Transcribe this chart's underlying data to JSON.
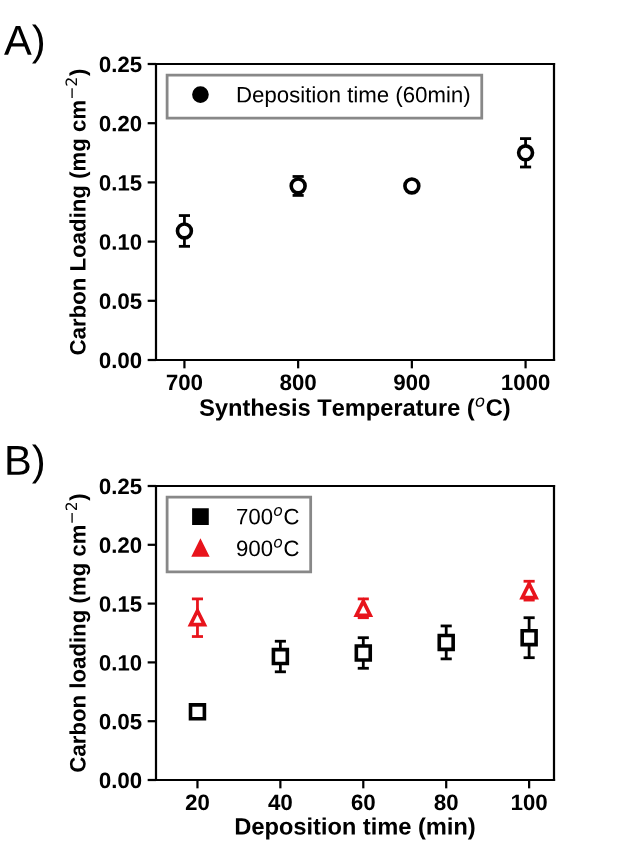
{
  "chart_data": [
    {
      "type": "scatter",
      "annotations": [
        "A)"
      ],
      "xlabel": "Synthesis Temperature ($^{o}$C)",
      "ylabel": "Carbon Loading (mg cm$^{−2}$)",
      "xlim": [
        675,
        1025
      ],
      "xticks": [
        700,
        800,
        900,
        1000
      ],
      "ylim": [
        0,
        0.25
      ],
      "yticks": [
        {
          "value": 0,
          "label": "0.00"
        },
        0.05,
        {
          "value": 0.1,
          "label": "0.10"
        },
        0.15,
        {
          "value": 0.2,
          "label": "0.20"
        },
        0.25
      ],
      "legend": "top left",
      "grid": false,
      "series": [
        {
          "name": "Deposition time (60min)",
          "color": "#000000",
          "marker": "circle",
          "x": [
            700,
            800,
            900,
            1000
          ],
          "values": [
            0.109,
            0.147,
            0.147,
            0.175
          ],
          "errors": [
            0.013,
            0.008,
            0.004,
            0.012
          ]
        }
      ]
    },
    {
      "type": "scatter",
      "annotations": [
        "B)"
      ],
      "xlabel": "Deposition time (min)",
      "ylabel": "Carbon loading (mg cm$^{−2}$)",
      "xlim": [
        10,
        106
      ],
      "xticks": [
        20,
        40,
        60,
        80,
        100
      ],
      "ylim": [
        0,
        0.25
      ],
      "yticks": [
        {
          "value": 0,
          "label": "0.00"
        },
        0.05,
        {
          "value": 0.1,
          "label": "0.10"
        },
        0.15,
        {
          "value": 0.2,
          "label": "0.20"
        },
        0.25
      ],
      "legend": "top left",
      "grid": false,
      "series": [
        {
          "name": "700$^{o}$C",
          "color": "#000000",
          "marker": "square",
          "x": [
            20,
            40,
            60,
            80,
            100
          ],
          "values": [
            0.058,
            0.105,
            0.108,
            0.117,
            0.121
          ],
          "errors": [
            null,
            0.013,
            0.013,
            0.014,
            0.017
          ]
        },
        {
          "name": "900$^{o}$C",
          "color": "#e8141c",
          "marker": "triangle",
          "x": [
            20,
            60,
            100
          ],
          "values": [
            0.138,
            0.146,
            0.161
          ],
          "errors": [
            0.016,
            0.008,
            0.008
          ]
        }
      ]
    }
  ]
}
